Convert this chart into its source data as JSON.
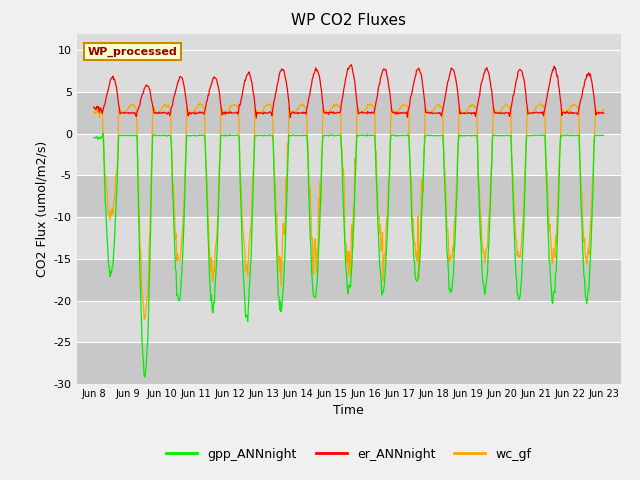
{
  "title": "WP CO2 Fluxes",
  "ylabel_display": "CO2 Flux (umol/m2/s)",
  "xlabel": "Time",
  "ylim": [
    -30,
    12
  ],
  "yticks": [
    10,
    5,
    0,
    -5,
    -10,
    -15,
    -20,
    -25,
    -30
  ],
  "bg_color": "#dcdcdc",
  "fig_color": "#f0f0f0",
  "annotation_text": "WP_processed",
  "annotation_color": "#8b0000",
  "annotation_bg": "#ffffcc",
  "annotation_border": "#cc8800",
  "gpp_color": "#00ee00",
  "er_color": "#ff0000",
  "wc_color": "#ffa500",
  "linewidth": 0.9,
  "n_days": 15,
  "points_per_day": 48,
  "start_day": 8,
  "legend_labels": [
    "gpp_ANNnight",
    "er_ANNnight",
    "wc_gf"
  ],
  "legend_colors": [
    "#00ee00",
    "#ff0000",
    "#ffa500"
  ],
  "stripe_colors": [
    "#dcdcdc",
    "#c8c8c8"
  ]
}
